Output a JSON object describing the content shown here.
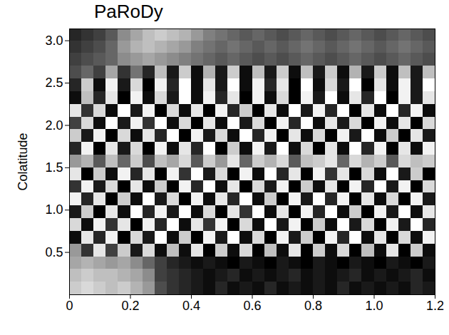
{
  "chart_data": {
    "type": "heatmap",
    "title": "PaRoDy",
    "ylabel": "Colatitude",
    "xlim": [
      0,
      1.2
    ],
    "ylim": [
      0,
      3.14
    ],
    "xticks": [
      0,
      0.2,
      0.4,
      0.6,
      0.8,
      {
        "value": 1,
        "label": "1.0"
      },
      1.2
    ],
    "yticks": [
      0.5,
      {
        "value": 1,
        "label": "1.0"
      },
      1.5,
      {
        "value": 2,
        "label": "2.0"
      },
      2.5,
      {
        "value": 3,
        "label": "3.0"
      }
    ],
    "zlim": [
      -1,
      1
    ],
    "color": [
      "#000000",
      "#ffffff"
    ],
    "cells": {
      "x_bins": [
        0,
        0.04,
        0.08,
        0.12,
        0.16,
        0.2,
        0.24,
        0.28,
        0.32,
        0.36,
        0.4,
        0.44,
        0.48,
        0.52,
        0.56,
        0.6,
        0.64,
        0.68,
        0.72,
        0.76,
        0.8,
        0.84,
        0.88,
        0.92,
        0.96,
        1,
        1.04,
        1.08,
        1.12,
        1.16,
        1.2
      ],
      "y_bins": [
        0,
        0.15,
        0.3,
        0.45,
        0.6,
        0.75,
        0.9,
        1.05,
        1.2,
        1.35,
        1.5,
        1.65,
        1.8,
        1.95,
        2.1,
        2.25,
        2.4,
        2.55,
        2.7,
        2.85,
        3,
        3.14
      ],
      "values": [
        [
          0.6,
          0.7,
          0.6,
          0.5,
          0.6,
          0.4,
          0.2,
          -0.4,
          -0.6,
          -0.7,
          -0.8,
          -0.9,
          -0.7,
          -0.9,
          -0.8,
          -0.9,
          -0.7,
          -0.9,
          -0.8,
          -0.9,
          -0.8,
          -0.9,
          -0.7,
          -0.9,
          -0.8,
          -0.9,
          -0.8,
          -0.9,
          -0.7,
          -0.8
        ],
        [
          0.5,
          0.6,
          0.5,
          0.5,
          0.4,
          0.3,
          0.1,
          -0.5,
          -0.6,
          -0.7,
          -0.8,
          -0.9,
          -0.8,
          -0.7,
          -0.9,
          -0.8,
          -0.9,
          -0.8,
          -0.7,
          -0.9,
          -0.8,
          -0.9,
          -0.8,
          -0.7,
          -0.9,
          -0.8,
          -0.9,
          -0.8,
          -0.7,
          -0.9
        ],
        [
          0.3,
          0.4,
          0.3,
          0.2,
          0.3,
          0.1,
          -0.2,
          -0.5,
          -0.7,
          -0.8,
          -0.9,
          -0.8,
          -0.9,
          -1,
          -0.8,
          -0.9,
          -1,
          -0.8,
          -0.9,
          -1,
          -0.8,
          -0.9,
          -1,
          -0.8,
          -0.9,
          -1,
          -0.8,
          -0.9,
          -1,
          -0.8
        ],
        [
          0.2,
          -0.6,
          0.8,
          -0.5,
          0.6,
          -0.8,
          0.7,
          -0.9,
          0.5,
          -0.9,
          0.8,
          -1,
          0.6,
          -0.9,
          0.7,
          -1,
          0.5,
          -0.9,
          0.8,
          -1,
          0.6,
          -0.9,
          0.7,
          -1,
          0.5,
          -0.9,
          0.8,
          -1,
          0.6,
          -0.9
        ],
        [
          -0.9,
          0.8,
          -0.7,
          0.9,
          -1,
          0.7,
          -0.8,
          1,
          -0.9,
          0.6,
          -1,
          0.9,
          -0.8,
          1,
          -0.9,
          0.7,
          -1,
          0.9,
          -0.8,
          0.6,
          -1,
          0.9,
          -0.7,
          1,
          -0.9,
          0.8,
          -1,
          0.7,
          -0.9,
          0.9
        ],
        [
          0.7,
          -0.9,
          0.9,
          -0.6,
          0.8,
          -1,
          0.9,
          -0.7,
          1,
          -0.9,
          0.8,
          -0.6,
          0.9,
          -1,
          0.7,
          -0.9,
          1,
          -0.8,
          0.9,
          -1,
          0.6,
          -0.9,
          1,
          -0.8,
          0.7,
          -1,
          0.9,
          -0.8,
          1,
          -0.7
        ],
        [
          -0.8,
          0.6,
          -1,
          0.8,
          -0.9,
          1,
          -0.7,
          0.9,
          -0.8,
          1,
          -0.9,
          0.7,
          -1,
          0.8,
          -0.6,
          1,
          -0.9,
          0.8,
          -1,
          0.9,
          -0.7,
          1,
          -0.9,
          0.6,
          -1,
          0.9,
          -0.8,
          1,
          -0.9,
          0.8
        ],
        [
          0.9,
          -0.7,
          0.8,
          -1,
          0.6,
          -0.9,
          1,
          -0.8,
          0.7,
          -1,
          0.9,
          -0.9,
          0.8,
          -0.7,
          1,
          -0.9,
          0.6,
          -1,
          0.9,
          -0.8,
          1,
          -0.7,
          0.9,
          -1,
          0.8,
          -0.9,
          0.7,
          -1,
          0.9,
          -0.8
        ],
        [
          -0.6,
          0.9,
          -0.8,
          0.7,
          -1,
          0.8,
          -0.9,
          0.6,
          -1,
          0.9,
          -0.7,
          1,
          -0.9,
          0.8,
          -1,
          0.7,
          -0.8,
          0.9,
          -1,
          0.6,
          -0.9,
          0.8,
          -1,
          0.9,
          -0.7,
          1,
          -0.8,
          0.9,
          -1,
          0.7
        ],
        [
          0.8,
          -1,
          0.6,
          -0.9,
          0.9,
          -0.7,
          0.8,
          -1,
          0.9,
          -0.6,
          1,
          -0.8,
          0.7,
          -1,
          0.9,
          -0.9,
          1,
          -0.7,
          0.8,
          -1,
          0.9,
          -0.6,
          0.8,
          -1,
          0.7,
          -0.9,
          1,
          -0.8,
          0.6,
          -1
        ],
        [
          0.2,
          0.4,
          -0.3,
          0.5,
          -0.2,
          0.6,
          -0.4,
          0.5,
          0.3,
          0.7,
          -0.3,
          0.6,
          0.2,
          0.8,
          -0.2,
          0.6,
          0.4,
          0.7,
          -0.3,
          0.5,
          0.6,
          0.8,
          -0.2,
          0.7,
          0.4,
          0.6,
          -0.3,
          0.7,
          0.5,
          0.6
        ],
        [
          -0.7,
          0.9,
          -1,
          0.8,
          -0.8,
          0.7,
          -1,
          0.9,
          -0.9,
          0.8,
          -0.7,
          1,
          -1,
          0.6,
          -0.9,
          0.9,
          -0.8,
          1,
          -0.9,
          0.7,
          -1,
          0.8,
          -0.9,
          1,
          -0.7,
          0.9,
          -1,
          0.8,
          -0.9,
          0.9
        ],
        [
          0.6,
          -0.8,
          0.9,
          -1,
          0.7,
          -0.9,
          0.8,
          -0.7,
          1,
          -1,
          0.9,
          -0.8,
          0.7,
          -0.9,
          1,
          -0.7,
          0.9,
          -1,
          0.8,
          -0.9,
          0.7,
          -1,
          0.9,
          -0.8,
          1,
          -0.9,
          0.6,
          -1,
          0.8,
          -0.8
        ],
        [
          -0.5,
          0.7,
          -0.9,
          1,
          -0.8,
          0.9,
          -0.6,
          1,
          -0.9,
          0.7,
          -1,
          0.8,
          -0.9,
          1,
          -0.8,
          0.7,
          -1,
          0.9,
          -0.7,
          1,
          -0.9,
          0.8,
          -0.8,
          0.7,
          -1,
          0.9,
          -0.9,
          0.8,
          -1,
          0.7
        ],
        [
          0.8,
          -0.6,
          0.7,
          -0.9,
          1,
          -0.8,
          0.9,
          -1,
          0.7,
          -0.9,
          0.8,
          -1,
          0.9,
          -0.7,
          0.6,
          -1,
          0.8,
          -0.9,
          1,
          -0.8,
          0.9,
          -0.7,
          1,
          -1,
          0.8,
          -0.9,
          1,
          -0.7,
          0.9,
          -0.9
        ],
        [
          -0.9,
          0.5,
          -0.7,
          0.8,
          -1,
          0.9,
          -0.9,
          0.7,
          -0.8,
          1,
          -0.9,
          0.9,
          -0.7,
          0.8,
          -1,
          0.9,
          -0.9,
          0.7,
          -1,
          0.9,
          -0.8,
          1,
          -0.9,
          0.8,
          -0.7,
          1,
          -1,
          0.9,
          -0.8,
          0.8
        ],
        [
          -0.7,
          0.6,
          -0.9,
          0.9,
          -0.8,
          0.7,
          -1,
          0.9,
          -0.7,
          1,
          -0.9,
          0.8,
          -0.8,
          1,
          -0.9,
          0.9,
          -0.7,
          0.8,
          -1,
          1,
          -0.9,
          0.7,
          -0.8,
          1,
          -1,
          0.8,
          -0.9,
          0.9,
          -0.8,
          1
        ],
        [
          -0.4,
          -0.2,
          -0.5,
          0.3,
          -0.6,
          -0.1,
          -0.7,
          0.5,
          -0.8,
          0.6,
          -0.9,
          0.4,
          -0.8,
          0.6,
          -0.9,
          0.5,
          -0.8,
          0.6,
          -0.9,
          0.5,
          -0.8,
          0.6,
          -0.9,
          0.4,
          -0.8,
          0.6,
          -0.9,
          0.5,
          -0.8,
          0.5
        ],
        [
          -0.5,
          -0.4,
          -0.3,
          -0.2,
          0.1,
          0.2,
          0.3,
          0.2,
          0.1,
          0,
          -0.1,
          -0.2,
          -0.3,
          -0.2,
          -0.3,
          -0.4,
          -0.3,
          -0.4,
          -0.3,
          -0.2,
          -0.3,
          -0.4,
          -0.3,
          -0.2,
          -0.3,
          -0.4,
          -0.3,
          -0.2,
          -0.3,
          -0.4
        ],
        [
          -0.6,
          -0.5,
          -0.4,
          -0.2,
          0.2,
          0.4,
          0.5,
          0.4,
          0.3,
          0.2,
          0,
          -0.1,
          -0.2,
          -0.1,
          -0.2,
          -0.3,
          -0.2,
          -0.3,
          -0.2,
          -0.1,
          -0.2,
          -0.3,
          -0.2,
          -0.1,
          -0.2,
          -0.3,
          -0.2,
          -0.1,
          -0.2,
          -0.3
        ],
        [
          -0.7,
          -0.6,
          -0.5,
          -0.3,
          0.1,
          0.3,
          0.5,
          0.6,
          0.5,
          0.4,
          0.2,
          0,
          -0.1,
          -0.2,
          -0.3,
          -0.2,
          -0.3,
          -0.4,
          -0.3,
          -0.2,
          -0.3,
          -0.4,
          -0.3,
          -0.2,
          -0.3,
          -0.4,
          -0.3,
          -0.2,
          -0.3,
          -0.4
        ]
      ]
    }
  }
}
